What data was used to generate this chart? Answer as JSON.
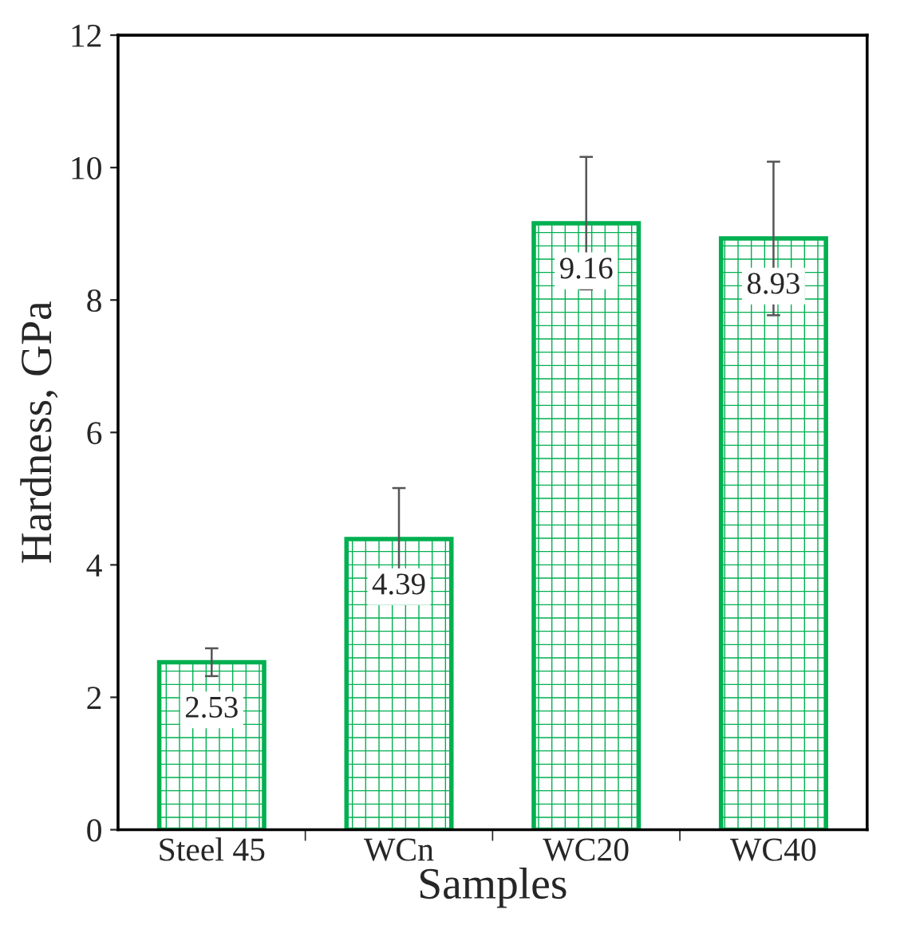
{
  "chart_data": {
    "type": "bar",
    "xlabel": "Samples",
    "ylabel": "Hardness, GPa",
    "categories": [
      "Steel 45",
      "WCn",
      "WC20",
      "WC40"
    ],
    "values": [
      2.53,
      4.39,
      9.16,
      8.93
    ],
    "errors": [
      0.21,
      0.77,
      1.0,
      1.16
    ],
    "color": "#00b050",
    "ylim": [
      0,
      12
    ],
    "yticks": [
      0,
      2,
      4,
      6,
      8,
      10,
      12
    ],
    "data_labels": true,
    "grid": false,
    "legend": false
  }
}
